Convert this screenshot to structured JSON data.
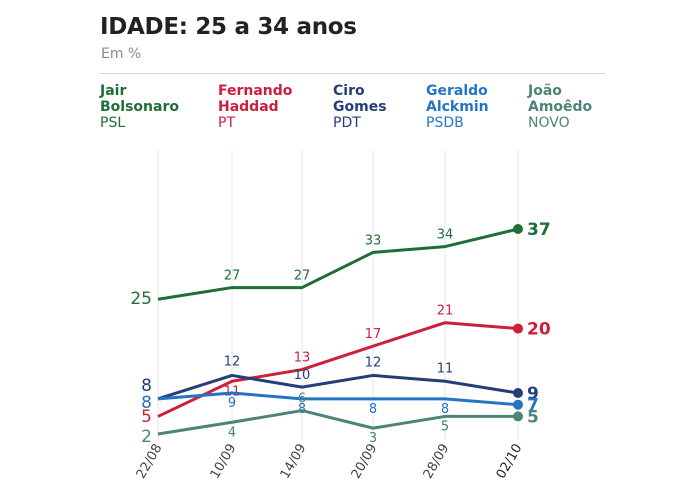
{
  "title": "IDADE: 25 a 34 anos",
  "subtitle": "Em %",
  "colors": {
    "grid": "#e6e6e6",
    "axis": "#444444"
  },
  "chart_data": {
    "type": "line",
    "title": "IDADE: 25 a 34 anos",
    "subtitle": "Em %",
    "xlabel": "",
    "ylabel": "",
    "ylim": [
      0,
      40
    ],
    "grid": "vertical",
    "legend_position": "top",
    "x": [
      "22/08",
      "10/09",
      "14/09",
      "20/09",
      "28/09",
      "02/10"
    ],
    "series": [
      {
        "name_line1": "Jair",
        "name_line2": "Bolsonaro",
        "party": "PSL",
        "color": "#1f6e35",
        "values": [
          25,
          27,
          27,
          33,
          34,
          37
        ],
        "labels": [
          "25",
          "27",
          "27",
          "33",
          "34",
          "37"
        ]
      },
      {
        "name_line1": "Fernando",
        "name_line2": "Haddad",
        "party": "PT",
        "color": "#cc1f3a",
        "values": [
          5,
          11,
          13,
          17,
          21,
          20
        ],
        "labels": [
          "5",
          "11",
          "13",
          "17",
          "21",
          "20"
        ]
      },
      {
        "name_line1": "Ciro",
        "name_line2": "Gomes",
        "party": "PDT",
        "color": "#223f7a",
        "values": [
          8,
          12,
          10,
          12,
          11,
          9
        ],
        "labels": [
          "8",
          "12",
          "10",
          "12",
          "11",
          "9"
        ]
      },
      {
        "name_line1": "Geraldo",
        "name_line2": "Alckmin",
        "party": "PSDB",
        "color": "#2574c4",
        "values": [
          8,
          9,
          8,
          8,
          8,
          7
        ],
        "labels": [
          "8",
          "9",
          "8",
          "8",
          "8",
          "7"
        ]
      },
      {
        "name_line1": "João",
        "name_line2": "Amoêdo",
        "party": "NOVO",
        "color": "#4d8478",
        "values": [
          2,
          4,
          6,
          3,
          5,
          5
        ],
        "labels": [
          "2",
          "4",
          "6",
          "3",
          "5",
          "5"
        ]
      }
    ]
  }
}
